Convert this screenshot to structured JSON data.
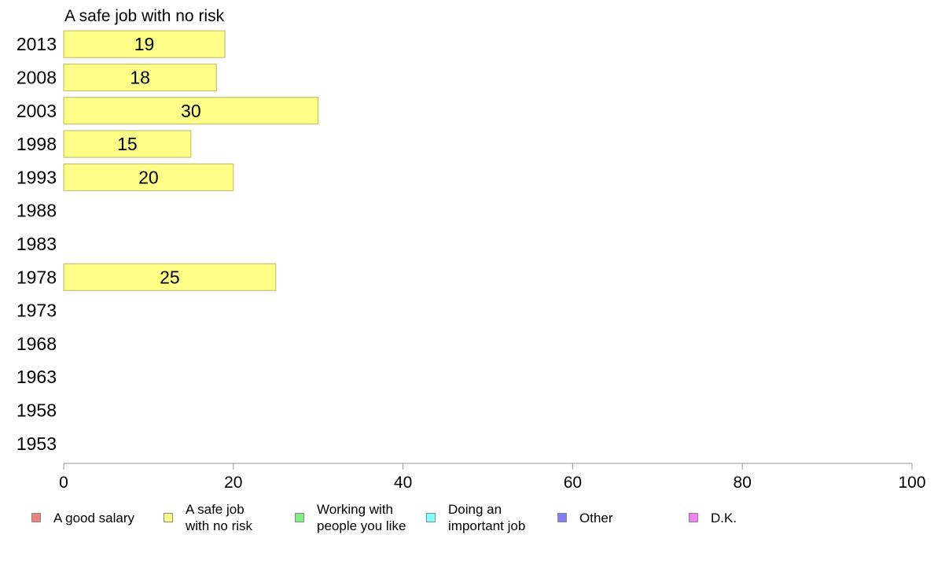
{
  "chart_data": {
    "type": "bar",
    "orientation": "horizontal",
    "title": "A safe job with no risk",
    "categories": [
      "2013",
      "2008",
      "2003",
      "1998",
      "1993",
      "1988",
      "1983",
      "1978",
      "1973",
      "1968",
      "1963",
      "1958",
      "1953"
    ],
    "values": [
      19,
      18,
      30,
      15,
      20,
      null,
      null,
      25,
      null,
      null,
      null,
      null,
      null
    ],
    "value_labels": [
      "19",
      "18",
      "30",
      "15",
      "20",
      "",
      "",
      "25",
      "",
      "",
      "",
      "",
      ""
    ],
    "xlim": [
      0,
      100
    ],
    "xticks": [
      "0",
      "20",
      "40",
      "60",
      "80",
      "100"
    ],
    "xlabel": "",
    "ylabel": "",
    "bar_color": "#ffff88",
    "bar_edge_color": "#b8b860",
    "grid": false,
    "legend_position": "bottom",
    "legend": [
      {
        "label": "A good salary",
        "color": "#f08080"
      },
      {
        "label": "A safe job\nwith no risk",
        "color": "#ffff80"
      },
      {
        "label": "Working with\npeople you like",
        "color": "#80f080"
      },
      {
        "label": "Doing an\nimportant job",
        "color": "#80ffff"
      },
      {
        "label": "Other",
        "color": "#8080f0"
      },
      {
        "label": "D.K.",
        "color": "#f080f0"
      }
    ]
  }
}
